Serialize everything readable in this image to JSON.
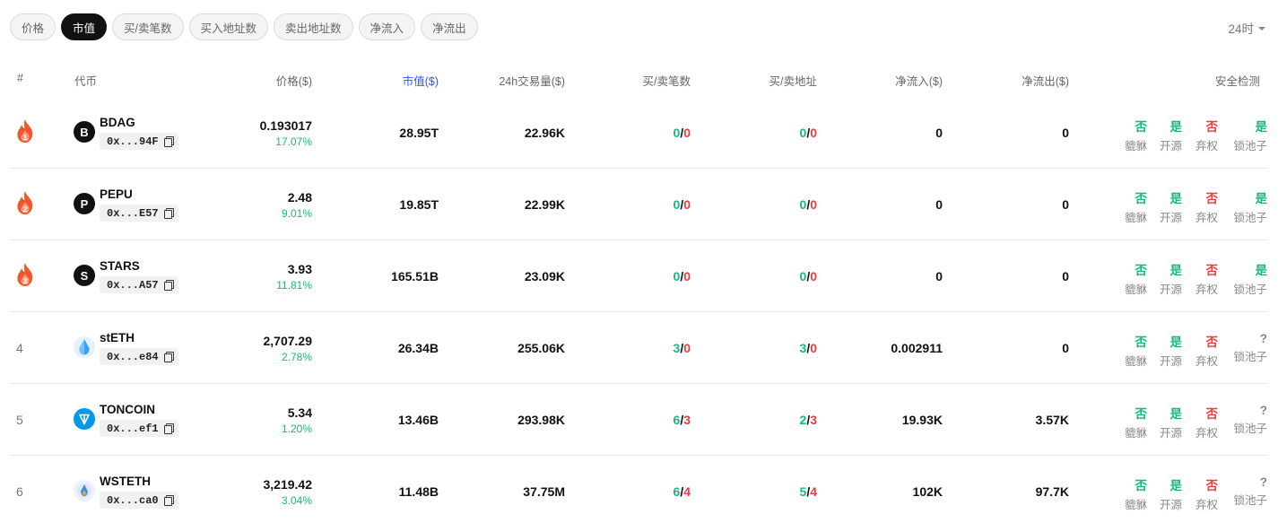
{
  "filters": [
    "价格",
    "市值",
    "买/卖笔数",
    "买入地址数",
    "卖出地址数",
    "净流入",
    "净流出"
  ],
  "period": "24时",
  "headers": {
    "rank": "#",
    "token": "代币",
    "price": "价格($)",
    "mcap": "市值($)",
    "volume": "24h交易量($)",
    "txs": "买/卖笔数",
    "addrs": "买/卖地址",
    "inflow": "净流入($)",
    "outflow": "净流出($)",
    "security": "安全检测"
  },
  "security_labels": [
    "貔貅",
    "开源",
    "弃权",
    "锁池子"
  ],
  "colors": {
    "green": "#16b979",
    "red": "#e83b3b",
    "accent": "#2f54eb",
    "fire": "#f5532d"
  },
  "rows": [
    {
      "rank": "1",
      "hot": true,
      "icon": "B",
      "symbol": "BDAG",
      "address": "0x...94F",
      "price": "0.193017",
      "change": "17.07%",
      "mcap": "28.95T",
      "volume": "22.96K",
      "buys": "0",
      "sells": "0",
      "buy_addrs": "0",
      "sell_addrs": "0",
      "inflow": "0",
      "outflow": "0",
      "sec": [
        "否",
        "是",
        "否",
        "是"
      ]
    },
    {
      "rank": "2",
      "hot": true,
      "icon": "P",
      "symbol": "PEPU",
      "address": "0x...E57",
      "price": "2.48",
      "change": "9.01%",
      "mcap": "19.85T",
      "volume": "22.99K",
      "buys": "0",
      "sells": "0",
      "buy_addrs": "0",
      "sell_addrs": "0",
      "inflow": "0",
      "outflow": "0",
      "sec": [
        "否",
        "是",
        "否",
        "是"
      ]
    },
    {
      "rank": "3",
      "hot": true,
      "icon": "S",
      "symbol": "STARS",
      "address": "0x...A57",
      "price": "3.93",
      "change": "11.81%",
      "mcap": "165.51B",
      "volume": "23.09K",
      "buys": "0",
      "sells": "0",
      "buy_addrs": "0",
      "sell_addrs": "0",
      "inflow": "0",
      "outflow": "0",
      "sec": [
        "否",
        "是",
        "否",
        "是"
      ]
    },
    {
      "rank": "4",
      "hot": false,
      "icon": "steth",
      "symbol": "stETH",
      "address": "0x...e84",
      "price": "2,707.29",
      "change": "2.78%",
      "mcap": "26.34B",
      "volume": "255.06K",
      "buys": "3",
      "sells": "0",
      "buy_addrs": "3",
      "sell_addrs": "0",
      "inflow": "0.002911",
      "outflow": "0",
      "sec": [
        "否",
        "是",
        "否",
        "?"
      ]
    },
    {
      "rank": "5",
      "hot": false,
      "icon": "ton",
      "symbol": "TONCOIN",
      "address": "0x...ef1",
      "price": "5.34",
      "change": "1.20%",
      "mcap": "13.46B",
      "volume": "293.98K",
      "buys": "6",
      "sells": "3",
      "buy_addrs": "2",
      "sell_addrs": "3",
      "inflow": "19.93K",
      "outflow": "3.57K",
      "sec": [
        "否",
        "是",
        "否",
        "?"
      ]
    },
    {
      "rank": "6",
      "hot": false,
      "icon": "wsteth",
      "symbol": "WSTETH",
      "address": "0x...ca0",
      "price": "3,219.42",
      "change": "3.04%",
      "mcap": "11.48B",
      "volume": "37.75M",
      "buys": "6",
      "sells": "4",
      "buy_addrs": "5",
      "sell_addrs": "4",
      "inflow": "102K",
      "outflow": "97.7K",
      "sec": [
        "否",
        "是",
        "否",
        "?"
      ]
    }
  ]
}
